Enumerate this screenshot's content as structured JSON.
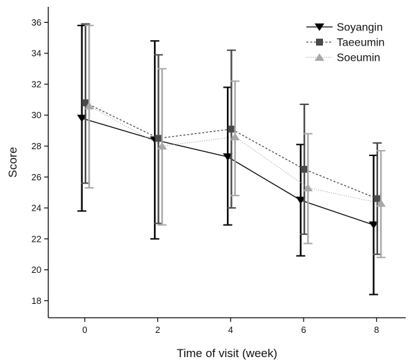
{
  "chart_data": {
    "type": "line",
    "xlabel": "Time of visit (week)",
    "ylabel": "Score",
    "x": [
      0,
      2,
      4,
      6,
      8
    ],
    "xlim": [
      -1.0,
      8.8
    ],
    "ylim": [
      16.9,
      37.0
    ],
    "xticks": [
      "0",
      "2",
      "4",
      "6",
      "8"
    ],
    "yticks": [
      "18",
      "20",
      "22",
      "24",
      "26",
      "28",
      "30",
      "32",
      "34",
      "36"
    ],
    "legend_position": "top-right",
    "grid": false,
    "series": [
      {
        "name": "Soyangin",
        "marker": "triangle-down",
        "line_style": "solid",
        "color": "#000000",
        "values": [
          29.8,
          28.4,
          27.3,
          24.5,
          22.9
        ],
        "error_low": [
          23.8,
          22.0,
          22.9,
          20.9,
          18.4
        ],
        "error_high": [
          35.8,
          34.8,
          31.8,
          28.1,
          27.4
        ]
      },
      {
        "name": "Taeeumin",
        "marker": "square",
        "line_style": "dashed",
        "color": "#4a4a4a",
        "values": [
          30.8,
          28.5,
          29.1,
          26.5,
          24.6
        ],
        "error_low": [
          25.6,
          23.0,
          24.0,
          22.3,
          21.0
        ],
        "error_high": [
          35.9,
          33.9,
          34.2,
          30.7,
          28.2
        ]
      },
      {
        "name": "Soeumin",
        "marker": "triangle-up",
        "line_style": "dotted",
        "color": "#a8a8a8",
        "values": [
          30.6,
          28.0,
          28.6,
          25.3,
          24.3
        ],
        "error_low": [
          25.3,
          22.9,
          24.8,
          21.7,
          20.8
        ],
        "error_high": [
          35.8,
          33.0,
          32.2,
          28.8,
          27.7
        ]
      }
    ]
  }
}
